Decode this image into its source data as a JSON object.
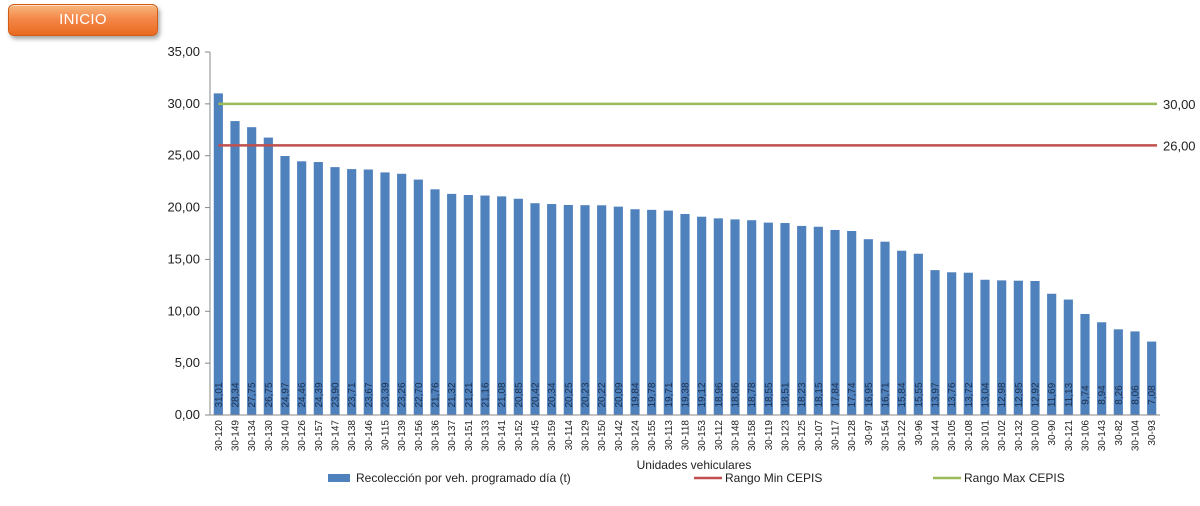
{
  "nav": {
    "inicio_label": "INICIO"
  },
  "chart_data": {
    "type": "bar",
    "xlabel": "Unidades vehiculares",
    "ylabel": "",
    "ylim": [
      0,
      35
    ],
    "yticks": [
      "0,00",
      "5,00",
      "10,00",
      "15,00",
      "20,00",
      "25,00",
      "30,00",
      "35,00"
    ],
    "grid": false,
    "legend_position": "bottom",
    "categories": [
      "30-120",
      "30-149",
      "30-134",
      "30-130",
      "30-140",
      "30-126",
      "30-157",
      "30-147",
      "30-138",
      "30-146",
      "30-115",
      "30-139",
      "30-156",
      "30-136",
      "30-137",
      "30-151",
      "30-133",
      "30-141",
      "30-152",
      "30-145",
      "30-159",
      "30-114",
      "30-129",
      "30-150",
      "30-142",
      "30-124",
      "30-155",
      "30-113",
      "30-118",
      "30-153",
      "30-112",
      "30-148",
      "30-158",
      "30-119",
      "30-123",
      "30-125",
      "30-107",
      "30-117",
      "30-128",
      "30-97",
      "30-154",
      "30-122",
      "30-96",
      "30-144",
      "30-105",
      "30-108",
      "30-101",
      "30-102",
      "30-132",
      "30-100",
      "30-90",
      "30-121",
      "30-106",
      "30-143",
      "30-82",
      "30-104",
      "30-93"
    ],
    "series": [
      {
        "name": "Recolección por veh. programado día (t)",
        "type": "bar",
        "color": "#4f81bd",
        "values": [
          31.01,
          28.34,
          27.75,
          26.75,
          24.97,
          24.46,
          24.39,
          23.9,
          23.71,
          23.67,
          23.39,
          23.26,
          22.7,
          21.76,
          21.32,
          21.21,
          21.16,
          21.08,
          20.85,
          20.42,
          20.34,
          20.25,
          20.23,
          20.22,
          20.09,
          19.84,
          19.78,
          19.71,
          19.38,
          19.12,
          18.96,
          18.86,
          18.78,
          18.55,
          18.51,
          18.23,
          18.15,
          17.84,
          17.74,
          16.95,
          16.71,
          15.84,
          15.55,
          13.97,
          13.76,
          13.72,
          13.04,
          12.98,
          12.95,
          12.92,
          11.69,
          11.13,
          9.74,
          8.94,
          8.26,
          8.06,
          7.08
        ],
        "labels": [
          "31,01",
          "28,34",
          "27,75",
          "26,75",
          "24,97",
          "24,46",
          "24,39",
          "23,90",
          "23,71",
          "23,67",
          "23,39",
          "23,26",
          "22,70",
          "21,76",
          "21,32",
          "21,21",
          "21,16",
          "21,08",
          "20,85",
          "20,42",
          "20,34",
          "20,25",
          "20,23",
          "20,22",
          "20,09",
          "19,84",
          "19,78",
          "19,71",
          "19,38",
          "19,12",
          "18,96",
          "18,86",
          "18,78",
          "18,55",
          "18,51",
          "18,23",
          "18,15",
          "17,84",
          "17,74",
          "16,95",
          "16,71",
          "15,84",
          "15,55",
          "13,97",
          "13,76",
          "13,72",
          "13,04",
          "12,98",
          "12,95",
          "12,92",
          "11,69",
          "11,13",
          "9,74",
          "8,94",
          "8,26",
          "8,06",
          "7,08"
        ]
      },
      {
        "name": "Rango Min CEPIS",
        "type": "line",
        "color": "#c0504d",
        "value": 26,
        "label": "26,00"
      },
      {
        "name": "Rango Max CEPIS",
        "type": "line",
        "color": "#9bbb59",
        "value": 30,
        "label": "30,00"
      }
    ]
  }
}
